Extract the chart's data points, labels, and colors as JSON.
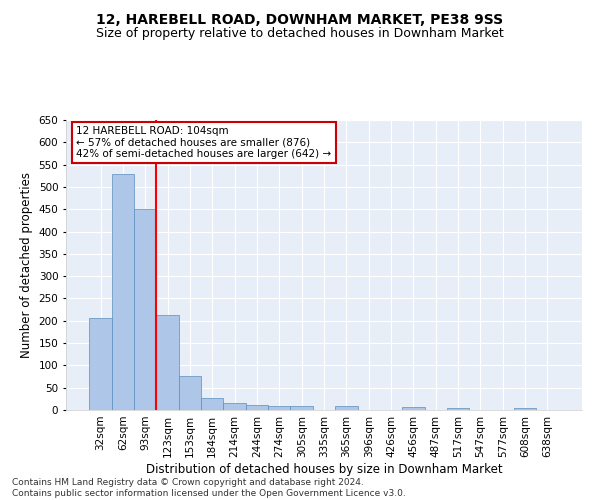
{
  "title1": "12, HAREBELL ROAD, DOWNHAM MARKET, PE38 9SS",
  "title2": "Size of property relative to detached houses in Downham Market",
  "xlabel": "Distribution of detached houses by size in Downham Market",
  "ylabel": "Number of detached properties",
  "footnote": "Contains HM Land Registry data © Crown copyright and database right 2024.\nContains public sector information licensed under the Open Government Licence v3.0.",
  "categories": [
    "32sqm",
    "62sqm",
    "93sqm",
    "123sqm",
    "153sqm",
    "184sqm",
    "214sqm",
    "244sqm",
    "274sqm",
    "305sqm",
    "335sqm",
    "365sqm",
    "396sqm",
    "426sqm",
    "456sqm",
    "487sqm",
    "517sqm",
    "547sqm",
    "577sqm",
    "608sqm",
    "638sqm"
  ],
  "values": [
    207,
    530,
    450,
    212,
    77,
    27,
    15,
    12,
    8,
    8,
    0,
    8,
    0,
    0,
    6,
    0,
    5,
    0,
    0,
    5,
    0
  ],
  "bar_color": "#aec6e8",
  "bar_edge_color": "#5a8fc0",
  "red_line_x": 2,
  "annotation_text": "12 HAREBELL ROAD: 104sqm\n← 57% of detached houses are smaller (876)\n42% of semi-detached houses are larger (642) →",
  "annotation_box_color": "#ffffff",
  "annotation_box_edge": "#cc0000",
  "ylim": [
    0,
    650
  ],
  "yticks": [
    0,
    50,
    100,
    150,
    200,
    250,
    300,
    350,
    400,
    450,
    500,
    550,
    600,
    650
  ],
  "background_color": "#e8eef7",
  "grid_color": "#ffffff",
  "title1_fontsize": 10,
  "title2_fontsize": 9,
  "xlabel_fontsize": 8.5,
  "ylabel_fontsize": 8.5,
  "tick_fontsize": 7.5,
  "annotation_fontsize": 7.5,
  "footnote_fontsize": 6.5
}
